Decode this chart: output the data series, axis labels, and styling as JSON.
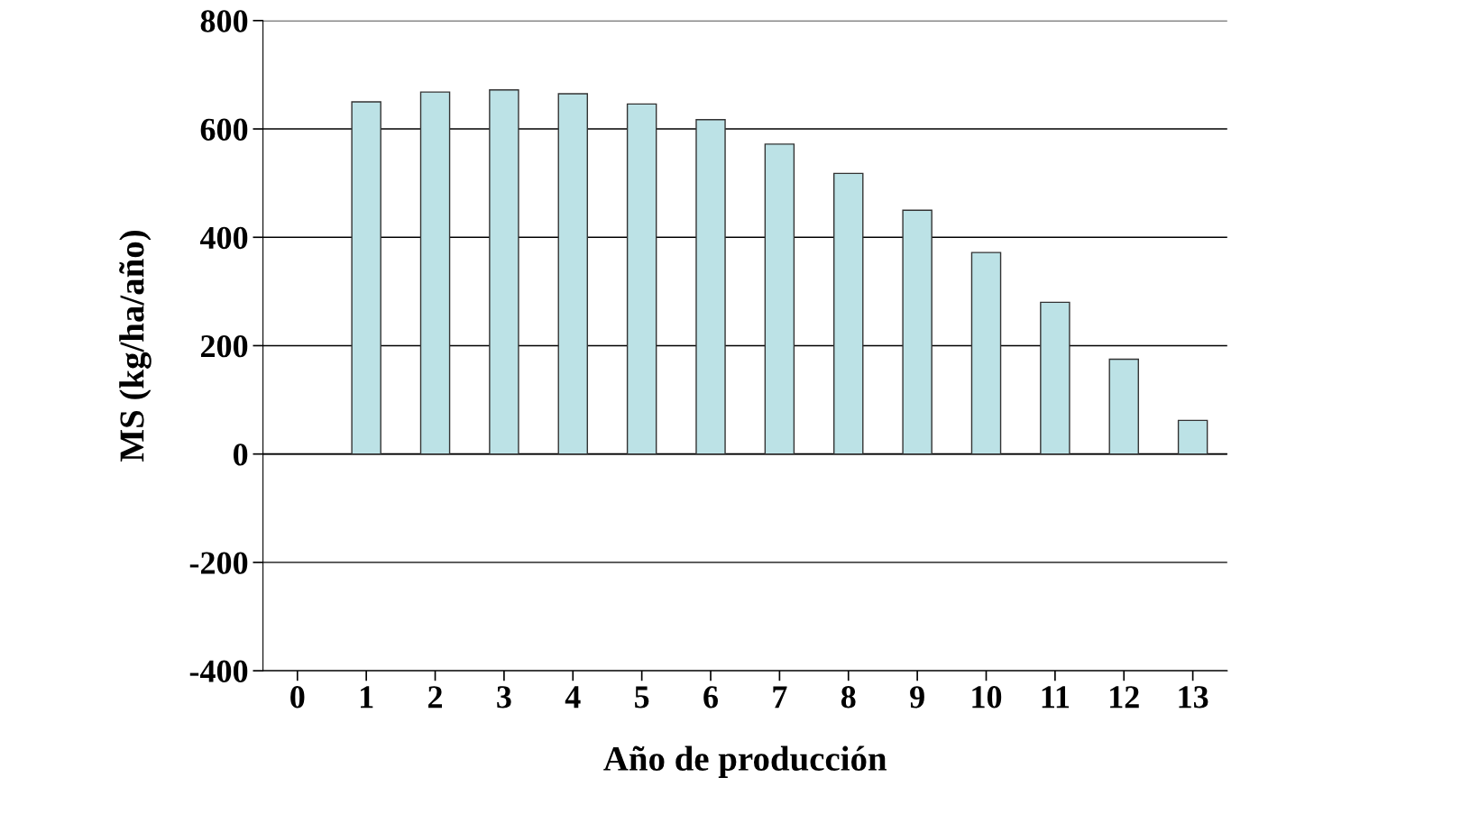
{
  "chart_data": {
    "type": "bar",
    "xlabel": "Año de producción",
    "ylabel": "MS (kg/ha/año)",
    "categories": [
      "0",
      "1",
      "2",
      "3",
      "4",
      "5",
      "6",
      "7",
      "8",
      "9",
      "10",
      "11",
      "12",
      "13"
    ],
    "values": [
      null,
      650,
      668,
      672,
      665,
      646,
      617,
      572,
      518,
      450,
      372,
      280,
      175,
      62
    ],
    "color": "#bce2e6",
    "ylim": [
      -400,
      800
    ],
    "yticks": [
      -400,
      -200,
      0,
      200,
      400,
      600,
      800
    ],
    "grid": "y"
  }
}
